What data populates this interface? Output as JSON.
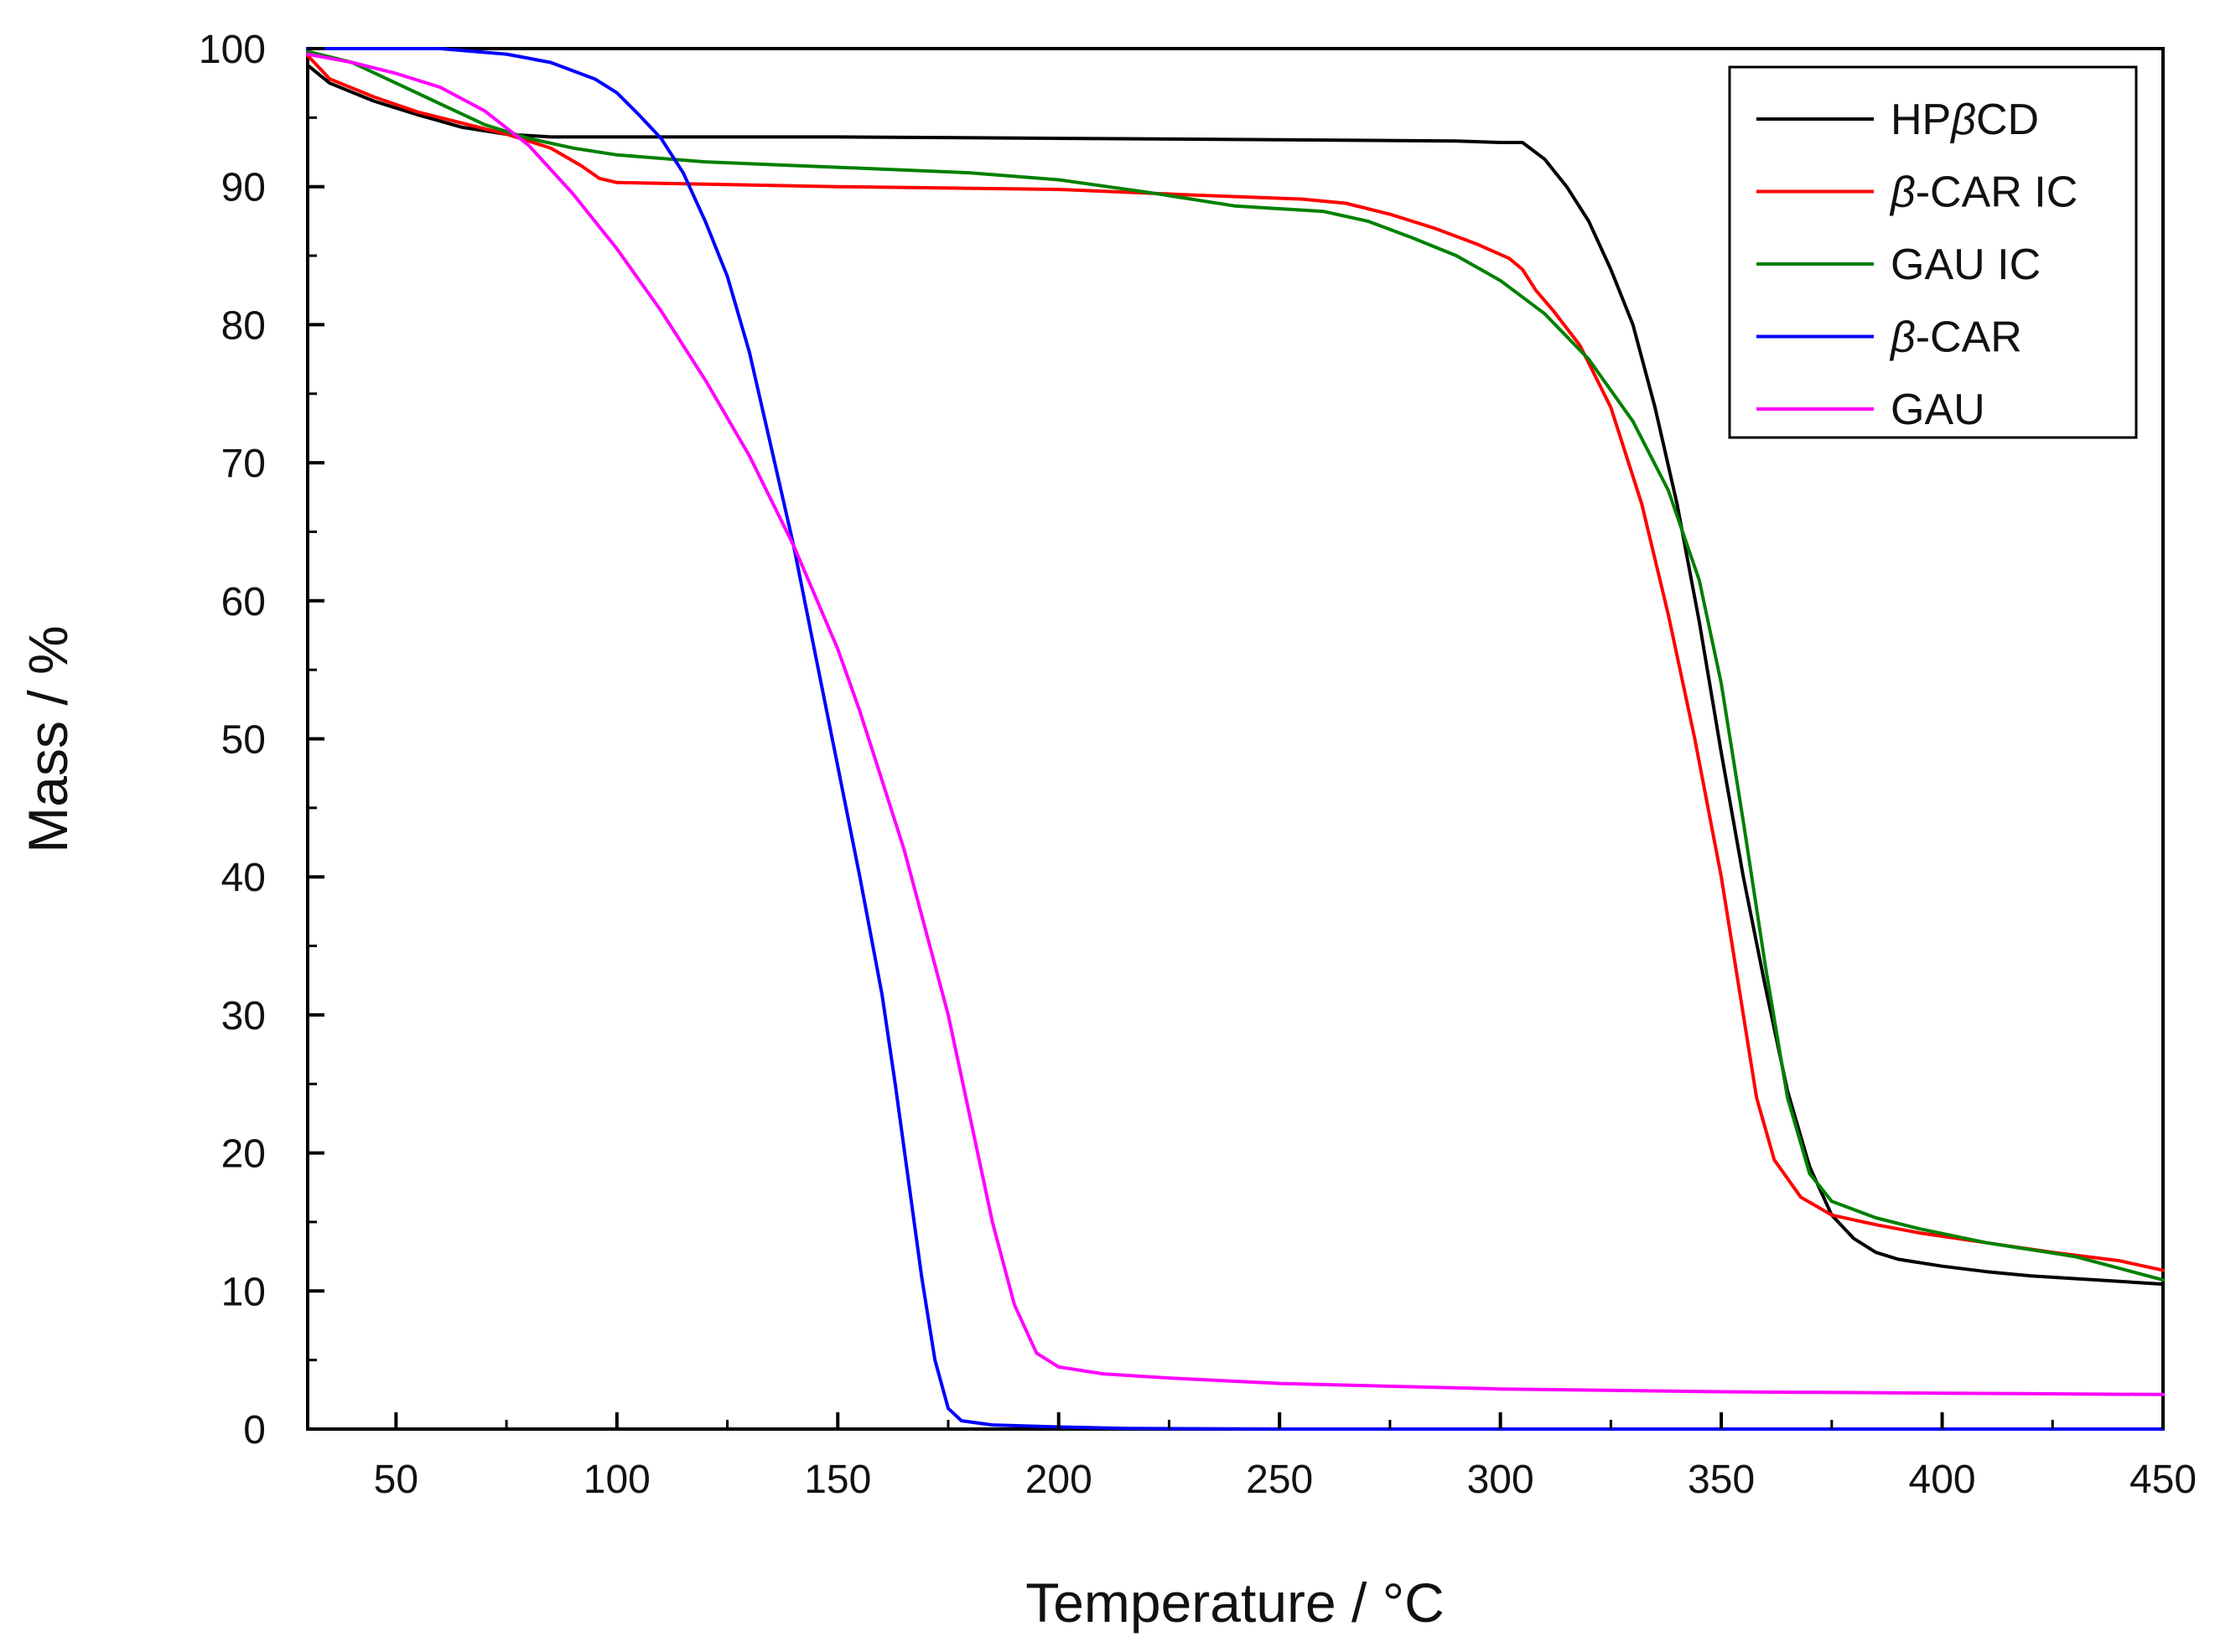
{
  "chart_data": {
    "type": "line",
    "title": "",
    "xlabel": "Temperature / °C",
    "ylabel": "Mass / %",
    "xlim": [
      30,
      450
    ],
    "ylim": [
      0,
      100
    ],
    "xticks": [
      50,
      100,
      150,
      200,
      250,
      300,
      350,
      400,
      450
    ],
    "yticks": [
      0,
      10,
      20,
      30,
      40,
      50,
      60,
      70,
      80,
      90,
      100
    ],
    "grid": false,
    "legend_position": "top-right",
    "series": [
      {
        "name": "HPβCD",
        "legend": {
          "pre": "HP",
          "italic": "β",
          "post": "CD"
        },
        "color": "#000000",
        "points": [
          [
            30,
            98.8
          ],
          [
            35,
            97.5
          ],
          [
            45,
            96.2
          ],
          [
            55,
            95.2
          ],
          [
            65,
            94.3
          ],
          [
            75,
            93.8
          ],
          [
            85,
            93.6
          ],
          [
            150,
            93.6
          ],
          [
            250,
            93.4
          ],
          [
            290,
            93.3
          ],
          [
            300,
            93.2
          ],
          [
            305,
            93.2
          ],
          [
            310,
            92.0
          ],
          [
            315,
            90.0
          ],
          [
            320,
            87.5
          ],
          [
            325,
            84.0
          ],
          [
            330,
            80.0
          ],
          [
            335,
            74.0
          ],
          [
            340,
            67.0
          ],
          [
            345,
            58.5
          ],
          [
            350,
            49.0
          ],
          [
            355,
            40.0
          ],
          [
            360,
            32.0
          ],
          [
            365,
            24.5
          ],
          [
            370,
            19.0
          ],
          [
            375,
            15.5
          ],
          [
            380,
            13.8
          ],
          [
            385,
            12.8
          ],
          [
            390,
            12.3
          ],
          [
            400,
            11.8
          ],
          [
            410,
            11.4
          ],
          [
            420,
            11.1
          ],
          [
            430,
            10.9
          ],
          [
            440,
            10.7
          ],
          [
            450,
            10.5
          ]
        ]
      },
      {
        "name": "β-CAR IC",
        "legend": {
          "pre": "",
          "italic": "β",
          "post": "-CAR IC"
        },
        "color": "#ff0000",
        "points": [
          [
            30,
            99.5
          ],
          [
            35,
            97.8
          ],
          [
            45,
            96.5
          ],
          [
            55,
            95.4
          ],
          [
            65,
            94.6
          ],
          [
            75,
            93.8
          ],
          [
            85,
            92.8
          ],
          [
            92,
            91.5
          ],
          [
            96,
            90.6
          ],
          [
            100,
            90.3
          ],
          [
            150,
            90.0
          ],
          [
            200,
            89.8
          ],
          [
            230,
            89.4
          ],
          [
            255,
            89.1
          ],
          [
            265,
            88.8
          ],
          [
            275,
            88.0
          ],
          [
            285,
            87.0
          ],
          [
            295,
            85.8
          ],
          [
            302,
            84.8
          ],
          [
            305,
            84.0
          ],
          [
            308,
            82.5
          ],
          [
            312,
            81.0
          ],
          [
            318,
            78.5
          ],
          [
            325,
            74.0
          ],
          [
            332,
            67.0
          ],
          [
            338,
            59.0
          ],
          [
            344,
            50.0
          ],
          [
            350,
            40.0
          ],
          [
            355,
            30.0
          ],
          [
            358,
            24.0
          ],
          [
            362,
            19.5
          ],
          [
            368,
            16.8
          ],
          [
            375,
            15.5
          ],
          [
            385,
            14.8
          ],
          [
            395,
            14.2
          ],
          [
            410,
            13.5
          ],
          [
            425,
            12.8
          ],
          [
            440,
            12.2
          ],
          [
            450,
            11.5
          ]
        ]
      },
      {
        "name": "GAU IC",
        "legend": {
          "pre": "GAU IC",
          "italic": "",
          "post": ""
        },
        "color": "#008000",
        "points": [
          [
            30,
            99.8
          ],
          [
            40,
            99.0
          ],
          [
            50,
            97.5
          ],
          [
            60,
            96.0
          ],
          [
            70,
            94.5
          ],
          [
            80,
            93.5
          ],
          [
            90,
            92.8
          ],
          [
            100,
            92.3
          ],
          [
            120,
            91.8
          ],
          [
            150,
            91.4
          ],
          [
            180,
            91.0
          ],
          [
            200,
            90.5
          ],
          [
            220,
            89.6
          ],
          [
            240,
            88.6
          ],
          [
            260,
            88.2
          ],
          [
            270,
            87.5
          ],
          [
            280,
            86.3
          ],
          [
            290,
            85.0
          ],
          [
            300,
            83.2
          ],
          [
            310,
            80.8
          ],
          [
            320,
            77.5
          ],
          [
            330,
            73.0
          ],
          [
            338,
            68.0
          ],
          [
            345,
            61.5
          ],
          [
            350,
            54.0
          ],
          [
            355,
            44.0
          ],
          [
            360,
            33.5
          ],
          [
            365,
            24.0
          ],
          [
            370,
            18.5
          ],
          [
            375,
            16.5
          ],
          [
            385,
            15.3
          ],
          [
            395,
            14.5
          ],
          [
            410,
            13.5
          ],
          [
            430,
            12.5
          ],
          [
            450,
            10.8
          ]
        ]
      },
      {
        "name": "β-CAR",
        "legend": {
          "pre": "",
          "italic": "β",
          "post": "-CAR"
        },
        "color": "#0000ff",
        "points": [
          [
            30,
            100
          ],
          [
            60,
            100
          ],
          [
            75,
            99.6
          ],
          [
            85,
            99.0
          ],
          [
            95,
            97.8
          ],
          [
            100,
            96.8
          ],
          [
            105,
            95.2
          ],
          [
            110,
            93.5
          ],
          [
            115,
            91.0
          ],
          [
            120,
            87.5
          ],
          [
            125,
            83.5
          ],
          [
            130,
            78.0
          ],
          [
            135,
            71.0
          ],
          [
            140,
            64.0
          ],
          [
            145,
            56.0
          ],
          [
            150,
            48.0
          ],
          [
            155,
            40.0
          ],
          [
            160,
            31.5
          ],
          [
            163,
            25.0
          ],
          [
            166,
            18.0
          ],
          [
            169,
            11.0
          ],
          [
            172,
            5.0
          ],
          [
            175,
            1.5
          ],
          [
            178,
            0.6
          ],
          [
            185,
            0.3
          ],
          [
            200,
            0.15
          ],
          [
            215,
            0.05
          ],
          [
            250,
            0
          ],
          [
            450,
            0
          ]
        ]
      },
      {
        "name": "GAU",
        "legend": {
          "pre": "GAU",
          "italic": "",
          "post": ""
        },
        "color": "#ff00ff",
        "points": [
          [
            30,
            99.6
          ],
          [
            40,
            99.0
          ],
          [
            50,
            98.2
          ],
          [
            60,
            97.2
          ],
          [
            70,
            95.5
          ],
          [
            80,
            93.0
          ],
          [
            90,
            89.5
          ],
          [
            100,
            85.5
          ],
          [
            110,
            81.0
          ],
          [
            120,
            76.0
          ],
          [
            130,
            70.5
          ],
          [
            140,
            64.0
          ],
          [
            150,
            56.5
          ],
          [
            155,
            52.0
          ],
          [
            160,
            47.0
          ],
          [
            165,
            42.0
          ],
          [
            170,
            36.0
          ],
          [
            175,
            30.0
          ],
          [
            180,
            22.5
          ],
          [
            185,
            15.0
          ],
          [
            190,
            9.0
          ],
          [
            195,
            5.5
          ],
          [
            200,
            4.5
          ],
          [
            210,
            4.0
          ],
          [
            225,
            3.7
          ],
          [
            250,
            3.3
          ],
          [
            300,
            2.9
          ],
          [
            350,
            2.7
          ],
          [
            400,
            2.6
          ],
          [
            450,
            2.5
          ]
        ]
      }
    ]
  }
}
